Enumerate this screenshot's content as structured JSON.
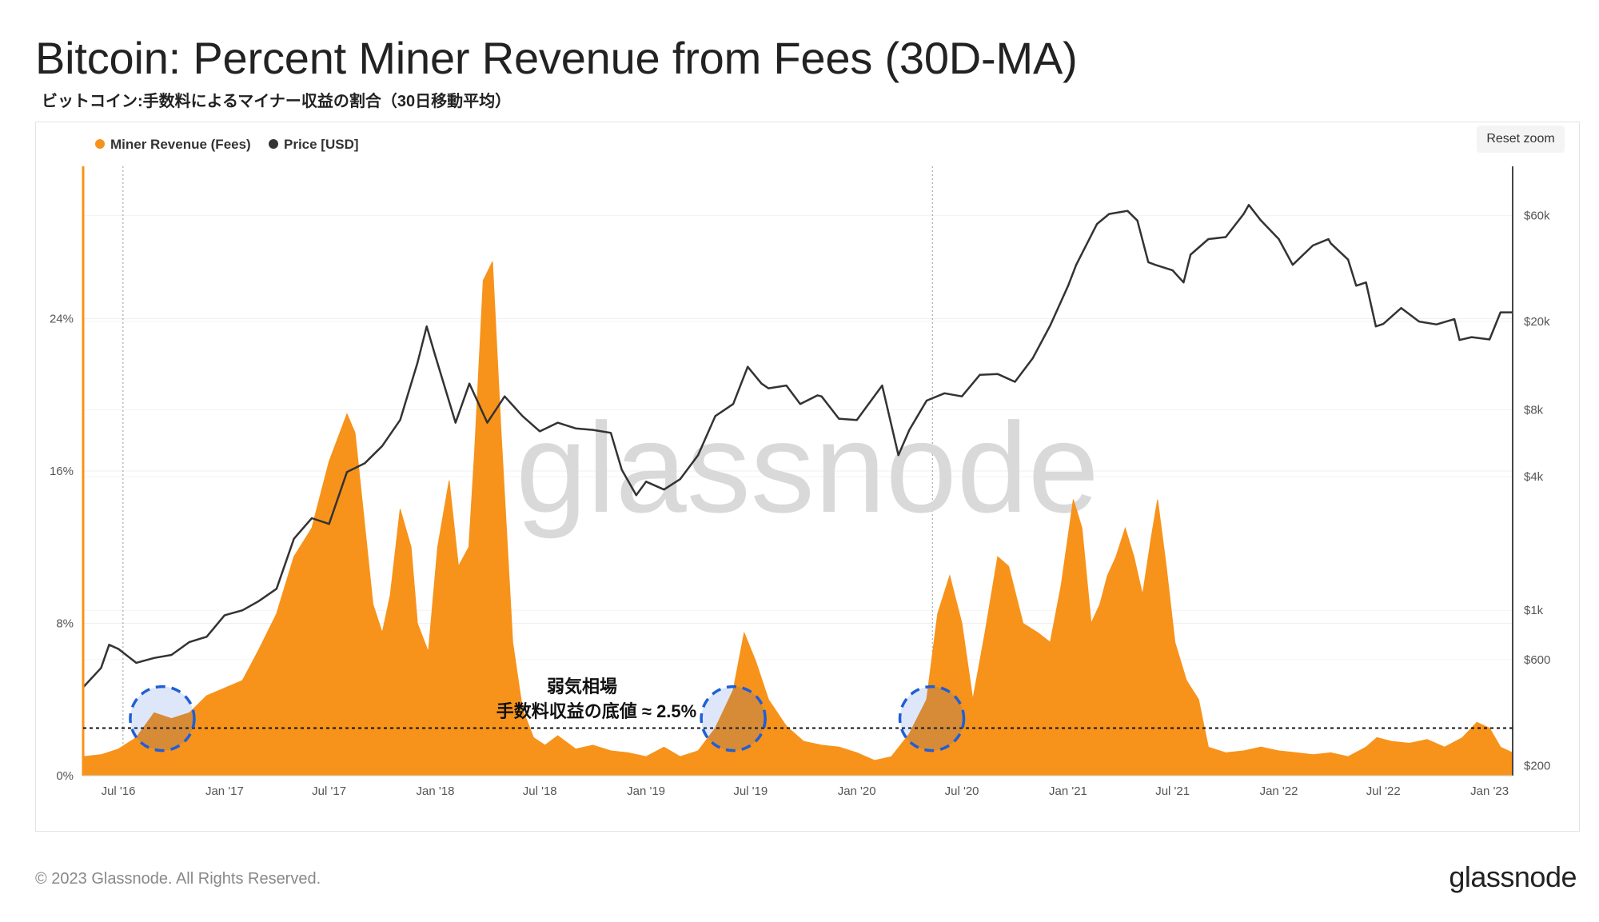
{
  "title": "Bitcoin: Percent Miner Revenue from Fees (30D-MA)",
  "subtitle": "ビットコイン:手数料によるマイナー収益の割合（30日移動平均）",
  "reset_zoom_label": "Reset zoom",
  "watermark": "glassnode",
  "footer": {
    "copyright": "© 2023 Glassnode. All Rights Reserved.",
    "logo": "glassnode"
  },
  "annotation": {
    "line1": "弱気相場",
    "line2": "手数料収益の底値 ≈ 2.5%"
  },
  "colors": {
    "fees": "#f7931a",
    "price": "#333333",
    "highlight": "#1f5fd6"
  },
  "chart_data": {
    "type": "area",
    "legend": {
      "placement": "top-left",
      "items": [
        "Miner Revenue (Fees)",
        "Price [USD]"
      ]
    },
    "x_ticks": [
      "Jul '16",
      "Jan '17",
      "Jul '17",
      "Jan '18",
      "Jul '18",
      "Jan '19",
      "Jul '19",
      "Jan '20",
      "Jul '20",
      "Jan '21",
      "Jul '21",
      "Jan '22",
      "Jul '22",
      "Jan '23"
    ],
    "x_tick_dates": [
      "2016-07-01",
      "2017-01-01",
      "2017-07-01",
      "2018-01-01",
      "2018-07-01",
      "2019-01-01",
      "2019-07-01",
      "2020-01-01",
      "2020-07-01",
      "2021-01-01",
      "2021-07-01",
      "2022-01-01",
      "2022-07-01",
      "2023-01-01"
    ],
    "x_range": [
      "2016-05-01",
      "2023-02-10"
    ],
    "y_left": {
      "ticks": [
        "0%",
        "8%",
        "16%",
        "24%"
      ],
      "tick_values": [
        0,
        8,
        16,
        24
      ],
      "range": [
        0,
        32
      ]
    },
    "y_right": {
      "scale": "log",
      "ticks": [
        "$200",
        "$600",
        "$1k",
        "$4k",
        "$8k",
        "$20k",
        "$60k"
      ],
      "tick_values": [
        200,
        600,
        1000,
        4000,
        8000,
        20000,
        60000
      ],
      "range": [
        180,
        100000
      ]
    },
    "grid": true,
    "reference_line": {
      "value": 2.5,
      "style": "dashed"
    },
    "halving_lines": [
      "2016-07-09",
      "2020-05-11"
    ],
    "highlight_circles": [
      {
        "date": "2016-09-15",
        "value": 3.0
      },
      {
        "date": "2019-06-01",
        "value": 3.0
      },
      {
        "date": "2020-05-10",
        "value": 3.0
      }
    ],
    "series": [
      {
        "name": "Miner Revenue (Fees)",
        "axis": "left",
        "points": [
          [
            "2016-05-01",
            1.0
          ],
          [
            "2016-06-01",
            1.1
          ],
          [
            "2016-07-01",
            1.4
          ],
          [
            "2016-08-01",
            2.0
          ],
          [
            "2016-09-01",
            3.3
          ],
          [
            "2016-10-01",
            3.0
          ],
          [
            "2016-11-01",
            3.3
          ],
          [
            "2016-12-01",
            4.2
          ],
          [
            "2017-01-01",
            4.6
          ],
          [
            "2017-02-01",
            5.0
          ],
          [
            "2017-03-01",
            6.6
          ],
          [
            "2017-04-01",
            8.5
          ],
          [
            "2017-05-01",
            11.5
          ],
          [
            "2017-06-01",
            13.0
          ],
          [
            "2017-07-01",
            16.5
          ],
          [
            "2017-08-01",
            19.0
          ],
          [
            "2017-08-15",
            18.0
          ],
          [
            "2017-09-15",
            9.0
          ],
          [
            "2017-10-01",
            7.5
          ],
          [
            "2017-10-15",
            9.5
          ],
          [
            "2017-11-01",
            14.0
          ],
          [
            "2017-11-20",
            12.0
          ],
          [
            "2017-12-01",
            8.0
          ],
          [
            "2017-12-20",
            6.5
          ],
          [
            "2018-01-05",
            12.0
          ],
          [
            "2018-01-25",
            15.5
          ],
          [
            "2018-02-10",
            11.0
          ],
          [
            "2018-02-28",
            12.0
          ],
          [
            "2018-03-10",
            17.0
          ],
          [
            "2018-03-25",
            26.0
          ],
          [
            "2018-04-10",
            27.0
          ],
          [
            "2018-04-25",
            18.0
          ],
          [
            "2018-05-15",
            7.0
          ],
          [
            "2018-06-01",
            3.5
          ],
          [
            "2018-06-20",
            2.0
          ],
          [
            "2018-07-10",
            1.6
          ],
          [
            "2018-08-01",
            2.1
          ],
          [
            "2018-09-01",
            1.4
          ],
          [
            "2018-10-01",
            1.6
          ],
          [
            "2018-11-01",
            1.3
          ],
          [
            "2018-12-01",
            1.2
          ],
          [
            "2019-01-01",
            1.0
          ],
          [
            "2019-02-01",
            1.5
          ],
          [
            "2019-03-01",
            1.0
          ],
          [
            "2019-04-01",
            1.3
          ],
          [
            "2019-05-01",
            2.5
          ],
          [
            "2019-06-01",
            4.5
          ],
          [
            "2019-06-20",
            7.5
          ],
          [
            "2019-07-10",
            6.0
          ],
          [
            "2019-08-01",
            4.0
          ],
          [
            "2019-09-01",
            2.6
          ],
          [
            "2019-10-01",
            1.8
          ],
          [
            "2019-11-01",
            1.6
          ],
          [
            "2019-12-01",
            1.5
          ],
          [
            "2020-01-01",
            1.2
          ],
          [
            "2020-02-01",
            0.8
          ],
          [
            "2020-03-01",
            1.0
          ],
          [
            "2020-04-01",
            2.2
          ],
          [
            "2020-05-01",
            4.0
          ],
          [
            "2020-05-20",
            8.5
          ],
          [
            "2020-06-10",
            10.5
          ],
          [
            "2020-07-01",
            8.0
          ],
          [
            "2020-07-20",
            4.0
          ],
          [
            "2020-08-10",
            7.5
          ],
          [
            "2020-09-01",
            11.5
          ],
          [
            "2020-09-20",
            11.0
          ],
          [
            "2020-10-15",
            8.0
          ],
          [
            "2020-11-10",
            7.5
          ],
          [
            "2020-12-01",
            7.0
          ],
          [
            "2020-12-20",
            10.0
          ],
          [
            "2021-01-10",
            14.5
          ],
          [
            "2021-01-25",
            13.0
          ],
          [
            "2021-02-10",
            8.0
          ],
          [
            "2021-02-25",
            9.0
          ],
          [
            "2021-03-10",
            10.5
          ],
          [
            "2021-03-25",
            11.5
          ],
          [
            "2021-04-10",
            13.0
          ],
          [
            "2021-04-25",
            11.5
          ],
          [
            "2021-05-10",
            9.5
          ],
          [
            "2021-05-25",
            12.5
          ],
          [
            "2021-06-05",
            14.5
          ],
          [
            "2021-06-20",
            11.0
          ],
          [
            "2021-07-05",
            7.0
          ],
          [
            "2021-07-25",
            5.0
          ],
          [
            "2021-08-15",
            4.0
          ],
          [
            "2021-09-01",
            1.5
          ],
          [
            "2021-10-01",
            1.2
          ],
          [
            "2021-11-01",
            1.3
          ],
          [
            "2021-12-01",
            1.5
          ],
          [
            "2022-01-01",
            1.3
          ],
          [
            "2022-02-01",
            1.2
          ],
          [
            "2022-03-01",
            1.1
          ],
          [
            "2022-04-01",
            1.2
          ],
          [
            "2022-05-01",
            1.0
          ],
          [
            "2022-06-01",
            1.5
          ],
          [
            "2022-06-20",
            2.0
          ],
          [
            "2022-07-15",
            1.8
          ],
          [
            "2022-08-15",
            1.7
          ],
          [
            "2022-09-15",
            1.9
          ],
          [
            "2022-10-15",
            1.5
          ],
          [
            "2022-11-15",
            2.0
          ],
          [
            "2022-12-10",
            2.8
          ],
          [
            "2023-01-01",
            2.5
          ],
          [
            "2023-01-20",
            1.5
          ],
          [
            "2023-02-10",
            1.2
          ]
        ]
      },
      {
        "name": "Price [USD]",
        "axis": "right",
        "points": [
          [
            "2016-05-01",
            450
          ],
          [
            "2016-06-01",
            550
          ],
          [
            "2016-06-15",
            700
          ],
          [
            "2016-07-01",
            670
          ],
          [
            "2016-08-01",
            580
          ],
          [
            "2016-09-01",
            610
          ],
          [
            "2016-10-01",
            630
          ],
          [
            "2016-11-01",
            720
          ],
          [
            "2016-12-01",
            760
          ],
          [
            "2017-01-01",
            950
          ],
          [
            "2017-02-01",
            1000
          ],
          [
            "2017-03-01",
            1100
          ],
          [
            "2017-04-01",
            1250
          ],
          [
            "2017-05-01",
            2100
          ],
          [
            "2017-06-01",
            2600
          ],
          [
            "2017-07-01",
            2450
          ],
          [
            "2017-08-01",
            4200
          ],
          [
            "2017-09-01",
            4600
          ],
          [
            "2017-10-01",
            5500
          ],
          [
            "2017-11-01",
            7200
          ],
          [
            "2017-12-01",
            13000
          ],
          [
            "2017-12-17",
            19000
          ],
          [
            "2018-01-01",
            14000
          ],
          [
            "2018-02-05",
            7000
          ],
          [
            "2018-03-01",
            10500
          ],
          [
            "2018-04-01",
            7000
          ],
          [
            "2018-05-01",
            9200
          ],
          [
            "2018-06-01",
            7500
          ],
          [
            "2018-07-01",
            6400
          ],
          [
            "2018-08-01",
            7000
          ],
          [
            "2018-09-01",
            6600
          ],
          [
            "2018-10-01",
            6500
          ],
          [
            "2018-11-01",
            6300
          ],
          [
            "2018-11-20",
            4300
          ],
          [
            "2018-12-15",
            3300
          ],
          [
            "2019-01-01",
            3800
          ],
          [
            "2019-02-01",
            3500
          ],
          [
            "2019-03-01",
            3900
          ],
          [
            "2019-04-01",
            5000
          ],
          [
            "2019-05-01",
            7500
          ],
          [
            "2019-06-01",
            8500
          ],
          [
            "2019-06-26",
            12500
          ],
          [
            "2019-07-20",
            10500
          ],
          [
            "2019-08-01",
            10000
          ],
          [
            "2019-09-01",
            10300
          ],
          [
            "2019-09-25",
            8500
          ],
          [
            "2019-10-25",
            9300
          ],
          [
            "2019-11-01",
            9200
          ],
          [
            "2019-12-01",
            7300
          ],
          [
            "2020-01-01",
            7200
          ],
          [
            "2020-02-14",
            10300
          ],
          [
            "2020-03-13",
            5000
          ],
          [
            "2020-04-01",
            6500
          ],
          [
            "2020-05-01",
            8800
          ],
          [
            "2020-06-01",
            9500
          ],
          [
            "2020-07-01",
            9200
          ],
          [
            "2020-08-01",
            11500
          ],
          [
            "2020-09-01",
            11600
          ],
          [
            "2020-10-01",
            10700
          ],
          [
            "2020-11-01",
            13700
          ],
          [
            "2020-12-01",
            19200
          ],
          [
            "2021-01-01",
            29000
          ],
          [
            "2021-01-15",
            36000
          ],
          [
            "2021-02-20",
            55000
          ],
          [
            "2021-03-13",
            61000
          ],
          [
            "2021-04-14",
            63000
          ],
          [
            "2021-05-01",
            57000
          ],
          [
            "2021-05-20",
            37000
          ],
          [
            "2021-06-01",
            36000
          ],
          [
            "2021-07-01",
            34000
          ],
          [
            "2021-07-20",
            30000
          ],
          [
            "2021-08-01",
            40000
          ],
          [
            "2021-09-01",
            47000
          ],
          [
            "2021-10-01",
            48000
          ],
          [
            "2021-11-01",
            61000
          ],
          [
            "2021-11-10",
            67000
          ],
          [
            "2021-12-01",
            57000
          ],
          [
            "2022-01-01",
            47000
          ],
          [
            "2022-01-25",
            36000
          ],
          [
            "2022-03-01",
            44000
          ],
          [
            "2022-03-28",
            47000
          ],
          [
            "2022-04-01",
            45000
          ],
          [
            "2022-05-01",
            38000
          ],
          [
            "2022-05-15",
            29000
          ],
          [
            "2022-06-01",
            30000
          ],
          [
            "2022-06-18",
            19000
          ],
          [
            "2022-07-01",
            19500
          ],
          [
            "2022-08-01",
            23000
          ],
          [
            "2022-09-01",
            20000
          ],
          [
            "2022-10-01",
            19400
          ],
          [
            "2022-11-01",
            20500
          ],
          [
            "2022-11-10",
            16500
          ],
          [
            "2022-12-01",
            17000
          ],
          [
            "2023-01-01",
            16600
          ],
          [
            "2023-01-20",
            22000
          ],
          [
            "2023-02-10",
            22000
          ]
        ]
      }
    ]
  }
}
